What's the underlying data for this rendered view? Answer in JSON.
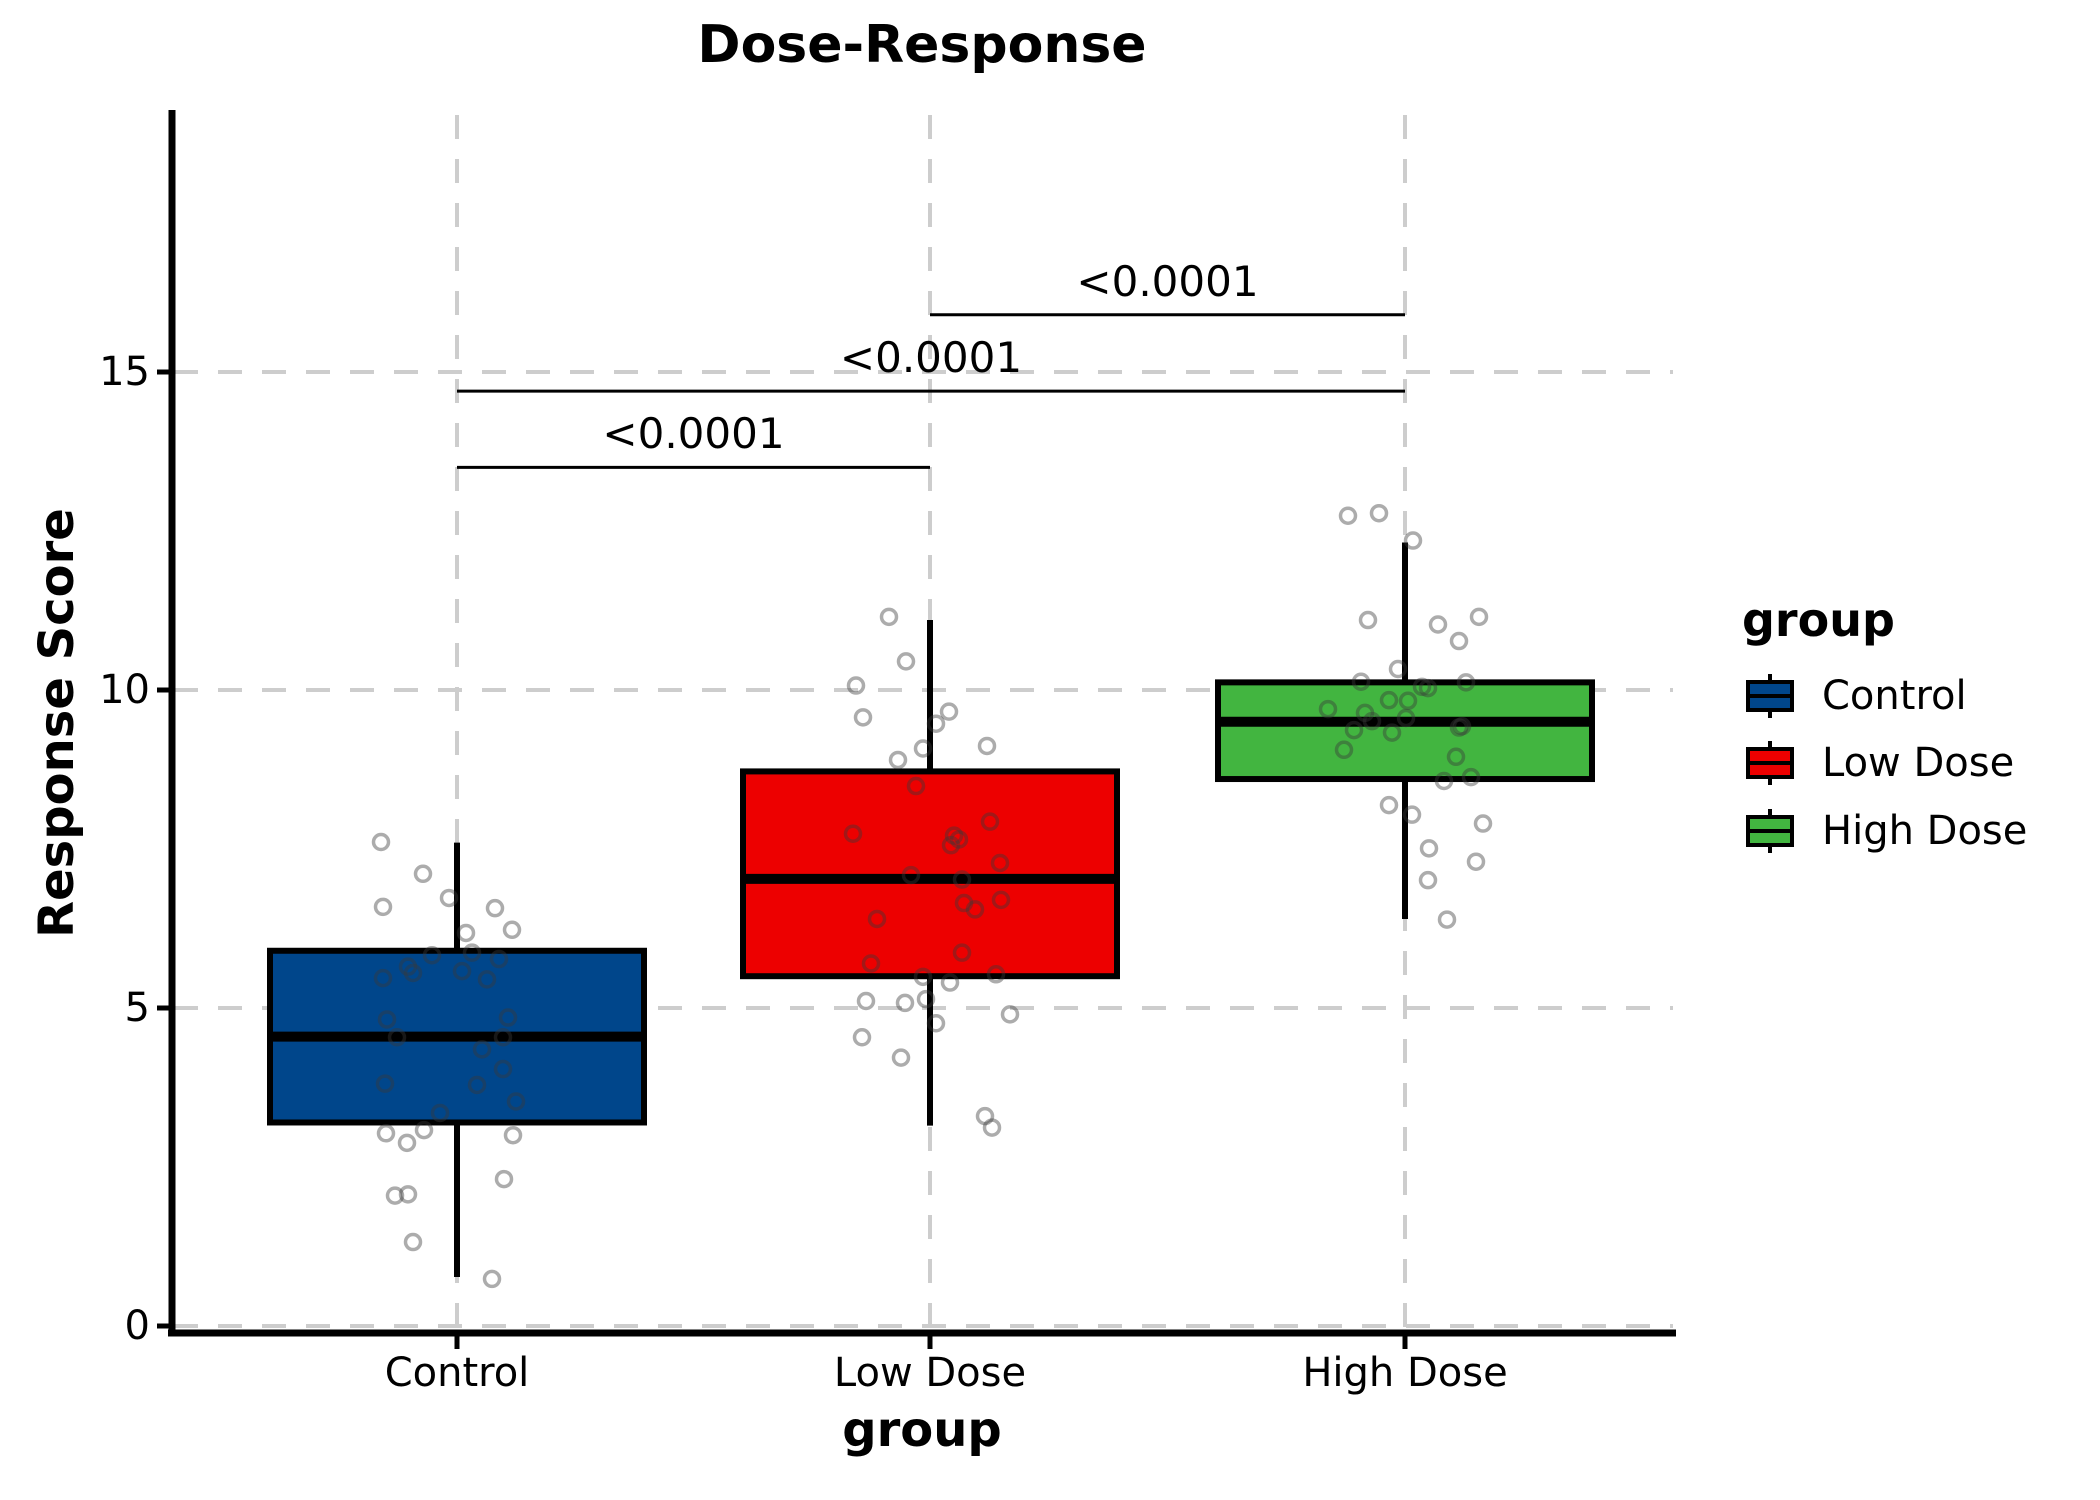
{
  "chart_data": {
    "type": "boxplot",
    "title": "Dose-Response",
    "x_label": "group",
    "y_label": "Response Score",
    "y_ticks": [
      0,
      5,
      10,
      15
    ],
    "y_tick_labels": [
      "0",
      "5",
      "10",
      "15"
    ],
    "ylim": [
      0,
      19.1
    ],
    "grid": "dashed",
    "legend": {
      "title": "group",
      "position": "right"
    },
    "point_style": "open-gray-circles-jittered",
    "groups": [
      {
        "label": "Control",
        "color": "#00468B",
        "stats": {
          "whisker_low": 0.77,
          "q1": 3.2,
          "median": 4.55,
          "q3": 5.9,
          "whisker_high": 7.6
        },
        "points": [
          [
            -76,
            7.61
          ],
          [
            -34,
            7.11
          ],
          [
            -8,
            6.73
          ],
          [
            -74,
            6.59
          ],
          [
            38,
            6.57
          ],
          [
            55,
            6.23
          ],
          [
            9,
            6.18
          ],
          [
            15,
            5.87
          ],
          [
            -25,
            5.83
          ],
          [
            -49,
            5.65
          ],
          [
            -44,
            5.55
          ],
          [
            -74,
            5.47
          ],
          [
            5,
            5.58
          ],
          [
            30,
            5.45
          ],
          [
            42,
            5.77
          ],
          [
            51,
            4.85
          ],
          [
            -70,
            4.82
          ],
          [
            -60,
            4.54
          ],
          [
            46,
            4.54
          ],
          [
            25,
            4.35
          ],
          [
            46,
            4.04
          ],
          [
            -72,
            3.81
          ],
          [
            20,
            3.79
          ],
          [
            59,
            3.53
          ],
          [
            -17,
            3.35
          ],
          [
            -71,
            3.03
          ],
          [
            -50,
            2.88
          ],
          [
            -33,
            3.08
          ],
          [
            56,
            3.0
          ],
          [
            47,
            2.31
          ],
          [
            -62,
            2.05
          ],
          [
            -49,
            2.07
          ],
          [
            -44,
            1.32
          ],
          [
            35,
            0.74
          ]
        ]
      },
      {
        "label": "Low Dose",
        "color": "#ED0000",
        "stats": {
          "whisker_low": 3.15,
          "q1": 5.5,
          "median": 7.03,
          "q3": 8.72,
          "whisker_high": 11.1
        },
        "points": [
          [
            -41,
            11.15
          ],
          [
            -24,
            10.45
          ],
          [
            -74,
            10.07
          ],
          [
            -67,
            9.57
          ],
          [
            19,
            9.66
          ],
          [
            6,
            9.47
          ],
          [
            57,
            9.12
          ],
          [
            -7,
            9.08
          ],
          [
            -32,
            8.9
          ],
          [
            -14,
            8.49
          ],
          [
            -77,
            7.74
          ],
          [
            60,
            7.93
          ],
          [
            24,
            7.71
          ],
          [
            29,
            7.65
          ],
          [
            21,
            7.56
          ],
          [
            70,
            7.28
          ],
          [
            -19,
            7.09
          ],
          [
            32,
            7.02
          ],
          [
            34,
            6.65
          ],
          [
            45,
            6.55
          ],
          [
            71,
            6.7
          ],
          [
            -53,
            6.4
          ],
          [
            32,
            5.87
          ],
          [
            -59,
            5.7
          ],
          [
            66,
            5.53
          ],
          [
            -7,
            5.49
          ],
          [
            20,
            5.4
          ],
          [
            -64,
            5.11
          ],
          [
            -25,
            5.08
          ],
          [
            -4,
            5.14
          ],
          [
            6,
            4.76
          ],
          [
            -68,
            4.54
          ],
          [
            -29,
            4.22
          ],
          [
            80,
            4.9
          ],
          [
            55,
            3.3
          ],
          [
            62,
            3.12
          ]
        ]
      },
      {
        "label": "High Dose",
        "color": "#42B540",
        "stats": {
          "whisker_low": 6.4,
          "q1": 8.6,
          "median": 9.5,
          "q3": 10.12,
          "whisker_high": 12.32
        },
        "points": [
          [
            -57,
            12.74
          ],
          [
            -26,
            12.78
          ],
          [
            8,
            12.35
          ],
          [
            -37,
            11.1
          ],
          [
            33,
            11.03
          ],
          [
            74,
            11.15
          ],
          [
            54,
            10.77
          ],
          [
            -7,
            10.33
          ],
          [
            -44,
            10.13
          ],
          [
            61,
            10.12
          ],
          [
            17,
            10.05
          ],
          [
            23,
            10.03
          ],
          [
            -16,
            9.84
          ],
          [
            3,
            9.83
          ],
          [
            -77,
            9.7
          ],
          [
            -40,
            9.64
          ],
          [
            -33,
            9.51
          ],
          [
            1,
            9.56
          ],
          [
            -51,
            9.37
          ],
          [
            -13,
            9.33
          ],
          [
            57,
            9.43
          ],
          [
            54,
            9.41
          ],
          [
            -61,
            9.06
          ],
          [
            51,
            8.95
          ],
          [
            39,
            8.57
          ],
          [
            66,
            8.63
          ],
          [
            -16,
            8.19
          ],
          [
            7,
            8.04
          ],
          [
            78,
            7.9
          ],
          [
            24,
            7.51
          ],
          [
            71,
            7.3
          ],
          [
            23,
            7.01
          ],
          [
            42,
            6.39
          ]
        ]
      }
    ],
    "significance": [
      {
        "group_a": 0,
        "group_b": 1,
        "label": "<0.0001",
        "y": 13.5
      },
      {
        "group_a": 0,
        "group_b": 2,
        "label": "<0.0001",
        "y": 14.7
      },
      {
        "group_a": 1,
        "group_b": 2,
        "label": "<0.0001",
        "y": 15.9
      }
    ],
    "colors": {
      "grid": "#cdcdcd",
      "axis": "#000000",
      "points": "#3a3a3a",
      "sig_line": "#000000"
    }
  }
}
